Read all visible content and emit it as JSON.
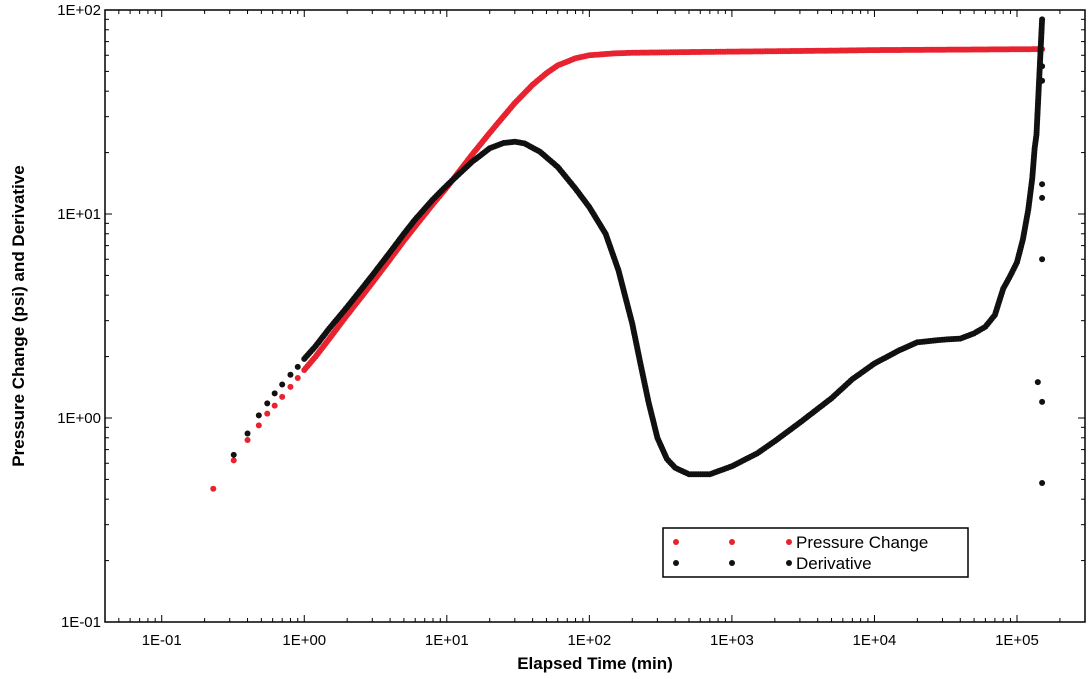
{
  "chart_data": {
    "type": "scatter",
    "xscale": "log",
    "yscale": "log",
    "xlim": [
      0.04,
      300000
    ],
    "ylim": [
      0.1,
      100
    ],
    "xlabel": "Elapsed Time (min)",
    "ylabel": "Pressure Change (psi)  and  Derivative",
    "x_ticks": [
      "1E-01",
      "1E+00",
      "1E+01",
      "1E+02",
      "1E+03",
      "1E+04",
      "1E+05"
    ],
    "x_tick_values": [
      0.1,
      1,
      10,
      100,
      1000,
      10000,
      100000
    ],
    "y_ticks": [
      "1E-01",
      "1E+00",
      "1E+01",
      "1E+02"
    ],
    "y_tick_values": [
      0.1,
      1,
      10,
      100
    ],
    "legend_position": "bottom-right",
    "series": [
      {
        "name": "Pressure Change",
        "color": "#e8232f",
        "points": [
          [
            0.23,
            0.45
          ],
          [
            0.32,
            0.62
          ],
          [
            0.4,
            0.78
          ],
          [
            0.48,
            0.92
          ],
          [
            0.55,
            1.05
          ],
          [
            0.62,
            1.15
          ],
          [
            0.7,
            1.27
          ],
          [
            0.8,
            1.42
          ],
          [
            0.9,
            1.57
          ],
          [
            1.0,
            1.72
          ],
          [
            1.2,
            2.0
          ],
          [
            1.5,
            2.45
          ],
          [
            2.0,
            3.2
          ],
          [
            2.5,
            3.9
          ],
          [
            3.0,
            4.6
          ],
          [
            4.0,
            6.0
          ],
          [
            5.0,
            7.4
          ],
          [
            6.0,
            8.7
          ],
          [
            8.0,
            11.2
          ],
          [
            10.0,
            13.5
          ],
          [
            15.0,
            19.5
          ],
          [
            20.0,
            25.0
          ],
          [
            30.0,
            35.0
          ],
          [
            40.0,
            43.0
          ],
          [
            50.0,
            49.0
          ],
          [
            60.0,
            53.5
          ],
          [
            80.0,
            58.0
          ],
          [
            100.0,
            60.0
          ],
          [
            150.0,
            61.3
          ],
          [
            200.0,
            61.7
          ],
          [
            500.0,
            62.2
          ],
          [
            1000.0,
            62.5
          ],
          [
            5000.0,
            63.2
          ],
          [
            10000.0,
            63.6
          ],
          [
            50000.0,
            64.0
          ],
          [
            100000.0,
            64.2
          ],
          [
            150000.0,
            64.3
          ]
        ]
      },
      {
        "name": "Derivative",
        "color": "#111111",
        "points": [
          [
            0.32,
            0.66
          ],
          [
            0.4,
            0.84
          ],
          [
            0.48,
            1.03
          ],
          [
            0.55,
            1.18
          ],
          [
            0.62,
            1.32
          ],
          [
            0.7,
            1.46
          ],
          [
            0.8,
            1.63
          ],
          [
            0.9,
            1.78
          ],
          [
            1.0,
            1.95
          ],
          [
            1.2,
            2.25
          ],
          [
            1.5,
            2.75
          ],
          [
            2.0,
            3.5
          ],
          [
            3.0,
            5.0
          ],
          [
            4.0,
            6.5
          ],
          [
            5.0,
            8.0
          ],
          [
            6.0,
            9.4
          ],
          [
            8.0,
            11.8
          ],
          [
            10.0,
            13.8
          ],
          [
            15.0,
            18.0
          ],
          [
            20.0,
            21.0
          ],
          [
            25.0,
            22.3
          ],
          [
            30.0,
            22.6
          ],
          [
            35.0,
            22.2
          ],
          [
            45.0,
            20.2
          ],
          [
            60.0,
            17.0
          ],
          [
            80.0,
            13.3
          ],
          [
            100.0,
            10.8
          ],
          [
            130.0,
            8.0
          ],
          [
            160.0,
            5.3
          ],
          [
            200.0,
            2.9
          ],
          [
            230.0,
            1.8
          ],
          [
            260.0,
            1.2
          ],
          [
            300.0,
            0.8
          ],
          [
            350.0,
            0.63
          ],
          [
            400.0,
            0.57
          ],
          [
            500.0,
            0.53
          ],
          [
            700.0,
            0.53
          ],
          [
            1000.0,
            0.58
          ],
          [
            1500.0,
            0.67
          ],
          [
            2000.0,
            0.77
          ],
          [
            3000.0,
            0.95
          ],
          [
            5000.0,
            1.25
          ],
          [
            7000.0,
            1.55
          ],
          [
            10000.0,
            1.85
          ],
          [
            15000.0,
            2.15
          ],
          [
            20000.0,
            2.35
          ],
          [
            30000.0,
            2.42
          ],
          [
            40000.0,
            2.45
          ],
          [
            50000.0,
            2.6
          ],
          [
            60000.0,
            2.8
          ],
          [
            70000.0,
            3.2
          ],
          [
            80000.0,
            4.3
          ],
          [
            90000.0,
            5.0
          ],
          [
            100000.0,
            5.8
          ],
          [
            110000.0,
            7.5
          ],
          [
            120000.0,
            10.5
          ],
          [
            128000.0,
            15.0
          ],
          [
            133000.0,
            21.0
          ],
          [
            137000.0,
            24.5
          ],
          [
            150000.0,
            90.0
          ],
          [
            150000.0,
            53.0
          ],
          [
            150000.0,
            45.0
          ],
          [
            150000.0,
            14.0
          ],
          [
            150000.0,
            12.0
          ],
          [
            150000.0,
            6.0
          ],
          [
            150000.0,
            1.2
          ],
          [
            150000.0,
            0.48
          ],
          [
            140000.0,
            1.5
          ]
        ]
      }
    ]
  }
}
